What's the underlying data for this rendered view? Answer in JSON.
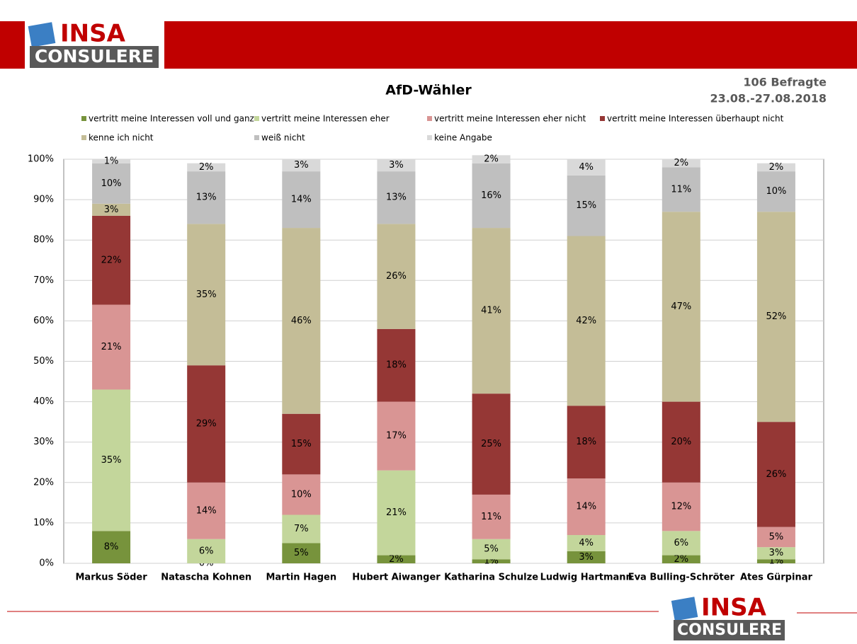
{
  "logo": {
    "line1": "INSA",
    "line2": "CONSULERE"
  },
  "header": {
    "respondents": "106 Befragte",
    "period": "23.08.-27.08.2018"
  },
  "chart_data": {
    "type": "stacked-bar",
    "title": "AfD-Wähler",
    "categories": [
      "Markus Söder",
      "Natascha Kohnen",
      "Martin Hagen",
      "Hubert Aiwanger",
      "Katharina Schulze",
      "Ludwig Hartmann",
      "Eva Bulling-Schröter",
      "Ates Gürpinar"
    ],
    "series": [
      {
        "name": "vertritt meine Interessen voll und ganz",
        "color": "#77933c",
        "values": [
          8,
          0,
          5,
          2,
          1,
          3,
          2,
          1
        ],
        "value_labels": [
          "8%",
          "0%",
          "5%",
          "2%",
          "1%",
          "3%",
          "2%",
          "1%"
        ]
      },
      {
        "name": "vertritt meine Interessen eher",
        "color": "#c3d69b",
        "values": [
          35,
          6,
          7,
          21,
          5,
          4,
          6,
          3
        ],
        "value_labels": [
          "35%",
          "6%",
          "7%",
          "21%",
          "5%",
          "4%",
          "6%",
          "3%"
        ]
      },
      {
        "name": "vertritt meine Interessen eher nicht",
        "color": "#d99594",
        "values": [
          21,
          14,
          10,
          17,
          11,
          14,
          12,
          5
        ],
        "value_labels": [
          "21%",
          "14%",
          "10%",
          "17%",
          "11%",
          "14%",
          "12%",
          "5%"
        ]
      },
      {
        "name": "vertritt meine Interessen überhaupt nicht",
        "color": "#953735",
        "values": [
          22,
          29,
          15,
          18,
          25,
          18,
          20,
          26
        ],
        "value_labels": [
          "22%",
          "29%",
          "15%",
          "18%",
          "25%",
          "18%",
          "20%",
          "26%"
        ]
      },
      {
        "name": "kenne ich nicht",
        "color": "#c4bd97",
        "values": [
          3,
          35,
          46,
          26,
          41,
          42,
          47,
          52
        ],
        "value_labels": [
          "3%",
          "35%",
          "46%",
          "26%",
          "41%",
          "42%",
          "47%",
          "52%"
        ]
      },
      {
        "name": "weiß nicht",
        "color": "#bfbfbf",
        "values": [
          10,
          13,
          14,
          13,
          16,
          15,
          11,
          10
        ],
        "value_labels": [
          "10%",
          "13%",
          "14%",
          "13%",
          "16%",
          "15%",
          "11%",
          "10%"
        ]
      },
      {
        "name": "keine Angabe",
        "color": "#d9d9d9",
        "values": [
          1,
          2,
          3,
          3,
          2,
          4,
          2,
          2
        ],
        "value_labels": [
          "1%",
          "2%",
          "3%",
          "3%",
          "2%",
          "4%",
          "2%",
          "2%"
        ]
      }
    ],
    "ylim": [
      0,
      100
    ],
    "yticks": [
      {
        "value": 0,
        "label": "0%"
      },
      {
        "value": 10,
        "label": "10%"
      },
      {
        "value": 20,
        "label": "20%"
      },
      {
        "value": 30,
        "label": "30%"
      },
      {
        "value": 40,
        "label": "40%"
      },
      {
        "value": 50,
        "label": "50%"
      },
      {
        "value": 60,
        "label": "60%"
      },
      {
        "value": 70,
        "label": "70%"
      },
      {
        "value": 80,
        "label": "80%"
      },
      {
        "value": 90,
        "label": "90%"
      },
      {
        "value": 100,
        "label": "100%"
      }
    ],
    "grid": true
  }
}
